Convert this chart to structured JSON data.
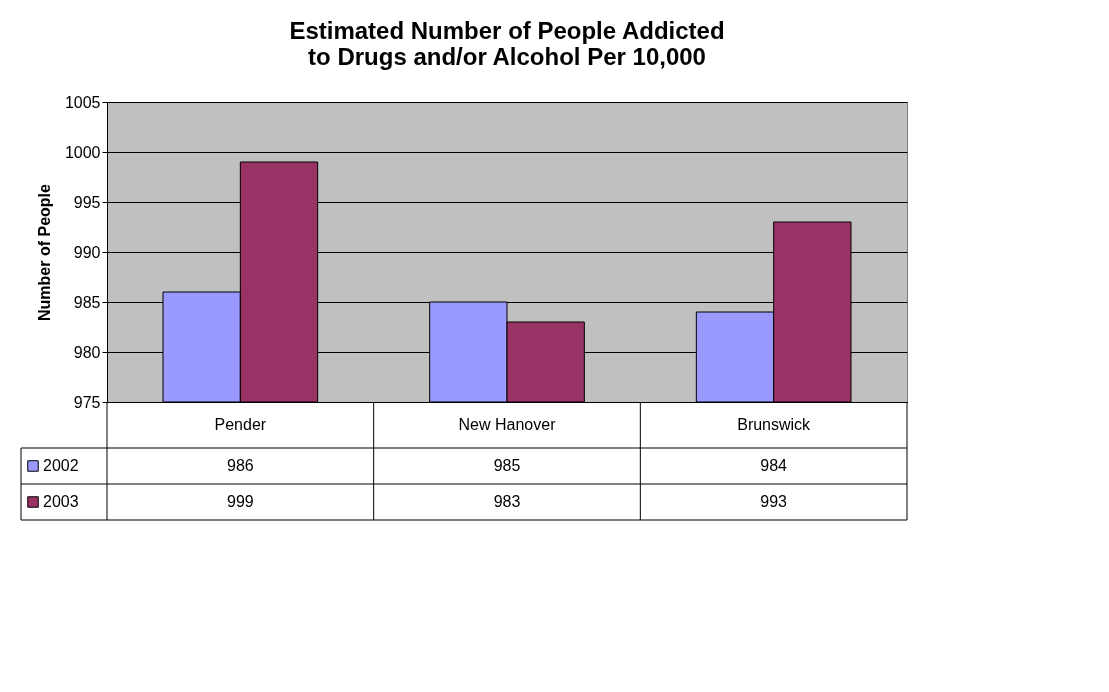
{
  "chart_data": {
    "type": "bar",
    "title": "Estimated Number of People Addicted\nto Drugs and/or Alcohol Per 10,000",
    "ylabel": "Number of People",
    "categories": [
      "Pender",
      "New Hanover",
      "Brunswick"
    ],
    "series": [
      {
        "name": "2002",
        "color": "#9999ff",
        "values": [
          986,
          985,
          984
        ]
      },
      {
        "name": "2003",
        "color": "#993366",
        "values": [
          999,
          983,
          993
        ]
      }
    ],
    "ylim": [
      975,
      1005
    ],
    "yticks": [
      975,
      980,
      985,
      990,
      995,
      1000,
      1005
    ],
    "grid": "y",
    "legend": "bottom",
    "data_labels": true
  }
}
